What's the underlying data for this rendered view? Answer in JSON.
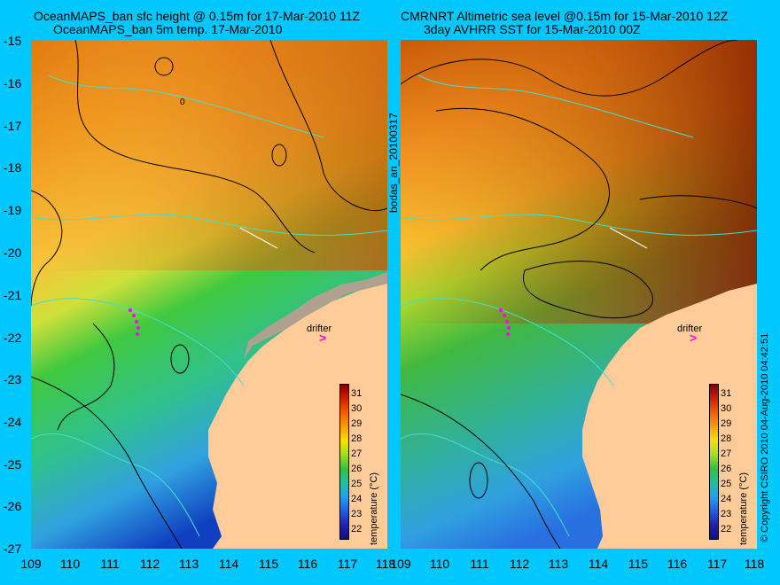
{
  "titles": {
    "left_line1": "OceanMAPS_ban sfc height @ 0.15m for 17-Mar-2010 11Z",
    "left_line2": "OceanMAPS_ban 5m temp. 17-Mar-2010",
    "right_line1": "CMRNRT Altimetric sea level  @0.15m  for 15-Mar-2010 12Z",
    "right_line2": "3day AVHRR SST for 15-Mar-2010 00Z"
  },
  "y_axis_labels": [
    "-15",
    "-16",
    "-17",
    "-18",
    "-19",
    "-20",
    "-21",
    "-22",
    "-23",
    "-24",
    "-25",
    "-26",
    "-27"
  ],
  "x_axis_left": [
    "109",
    "110",
    "111",
    "112",
    "113",
    "114",
    "115",
    "116",
    "117",
    "118"
  ],
  "x_axis_right": [
    "109",
    "110",
    "111",
    "112",
    "113",
    "114",
    "115",
    "116",
    "117",
    "118"
  ],
  "middle_label": "bodas_an_20100317",
  "contour_label": "0",
  "drifter_label": "drifter",
  "colorbar": {
    "title": "temperature (°C)",
    "ticks": [
      "31",
      "30",
      "29",
      "28",
      "27",
      "26",
      "25",
      "24",
      "23",
      "22"
    ]
  },
  "copyright": "© Copyright CSIRO 2010   04-Aug-2010 04:42:51",
  "colors": {
    "background": "#00c8ff",
    "land": "#ffcc99",
    "isobath": "#40e0d0",
    "drifter": "#ff00ff"
  }
}
